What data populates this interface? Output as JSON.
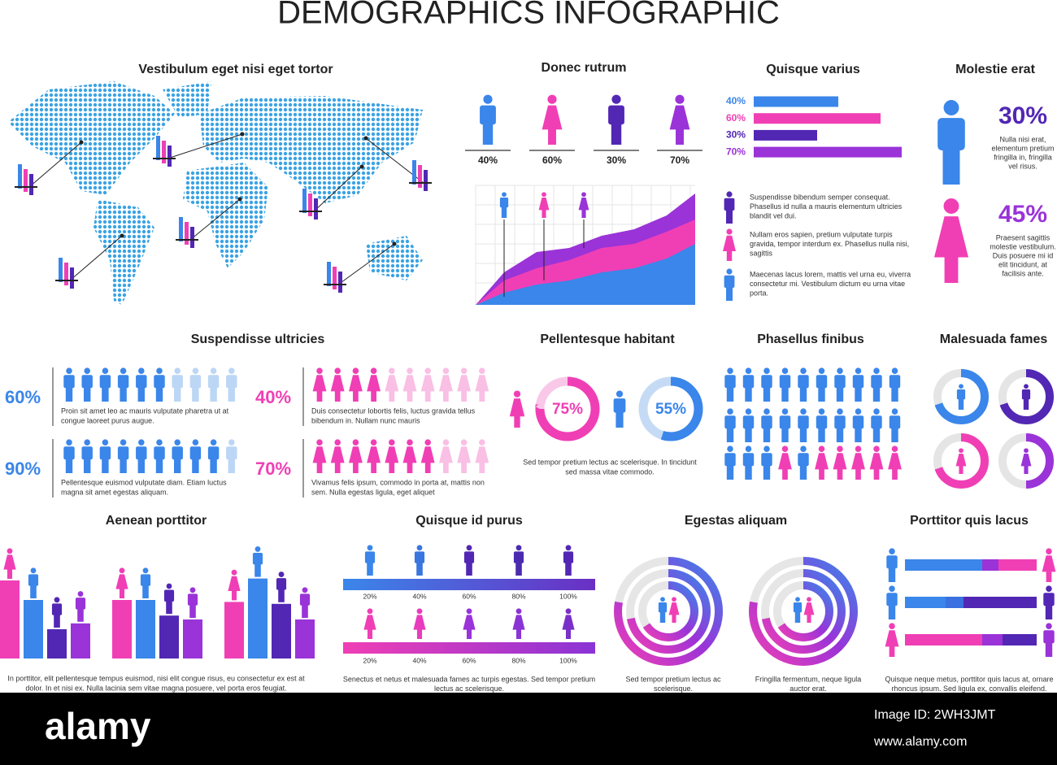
{
  "title": "DEMOGRAPHICS INFOGRAPHIC",
  "map": {
    "title": "Vestibulum eget nisi eget tortor"
  },
  "donec": {
    "title": "Donec rutrum",
    "labels": [
      "40%",
      "60%",
      "30%",
      "70%"
    ]
  },
  "quisque_varius": {
    "title": "Quisque varius",
    "bars": [
      {
        "value": 40,
        "label": "40%",
        "color": "#3a86ea"
      },
      {
        "value": 60,
        "label": "60%",
        "color": "#f03fb5"
      },
      {
        "value": 30,
        "label": "30%",
        "color": "#5227b4"
      },
      {
        "value": 70,
        "label": "70%",
        "color": "#9a33d8"
      }
    ],
    "legend": [
      [
        "Suspendisse bibendum semper consequat.",
        "Phasellus id nulla a mauris elementum ultricies",
        "blandit vel dui."
      ],
      [
        "Nullam eros sapien, pretium vulputate turpis",
        "gravida, tempor interdum ex. Phasellus nulla nisi,",
        "sagittis"
      ],
      [
        "Maecenas lacus lorem, mattis vel urna eu, viverra",
        "consectetur mi. Vestibulum dictum eu urna vitae",
        "porta."
      ]
    ]
  },
  "molestie": {
    "title": "Molestie erat",
    "items": [
      {
        "label": "30%",
        "lines": [
          "Nulla nisi erat,",
          "elementum pretium",
          "fringilla in, fringilla",
          "vel risus."
        ]
      },
      {
        "label": "45%",
        "lines": [
          "Praesent sagittis",
          "molestie vestibulum.",
          "Duis posuere mi id",
          "elit tincidunt, at",
          "facilisis ante."
        ]
      }
    ]
  },
  "suspendisse": {
    "title": "Suspendisse ultricies",
    "blocks": [
      {
        "value": 60,
        "label": "60%",
        "lines": [
          "Proin sit amet leo ac mauris vulputate pharetra ut at",
          "congue laoreet purus augue."
        ]
      },
      {
        "value": 40,
        "label": "40%",
        "lines": [
          "Duis consectetur lobortis felis, luctus gravida tellus",
          "bibendum in. Nullam nunc mauris"
        ]
      },
      {
        "value": 90,
        "label": "90%",
        "lines": [
          "Pellentesque euismod vulputate diam. Etiam luctus",
          "magna sit amet egestas aliquam."
        ]
      },
      {
        "value": 70,
        "label": "70%",
        "lines": [
          "Vivamus felis ipsum, commodo in porta at, mattis non",
          "sem. Nulla egestas ligula, eget aliquet"
        ]
      }
    ]
  },
  "pellentesque": {
    "title": "Pellentesque habitant",
    "donuts": [
      {
        "value": 75,
        "label": "75%"
      },
      {
        "value": 55,
        "label": "55%"
      }
    ],
    "lines": [
      "Sed tempor pretium lectus ac scelerisque. In tincidunt",
      "sed massa vitae commodo."
    ]
  },
  "phasellus": {
    "title": "Phasellus finibus"
  },
  "malesuada": {
    "title": "Malesuada fames"
  },
  "aenean": {
    "title": "Aenean porttitor",
    "groups": [
      [
        40,
        30,
        15,
        18
      ],
      [
        30,
        30,
        22,
        20
      ],
      [
        29,
        41,
        28,
        20
      ]
    ],
    "lines": [
      "In porttitor, elit pellentesque tempus euismod, nisi elit congue risus, eu consectetur ex est at",
      "dolor. In et nisi ex. Nulla lacinia sem vitae magna posuere, vel porta eros feugiat."
    ]
  },
  "quisque_id": {
    "title": "Quisque id purus",
    "steps": [
      "20%",
      "40%",
      "60%",
      "80%",
      "100%"
    ],
    "lines": [
      "Senectus et netus et malesuada fames ac turpis egestas. Sed tempor pretium",
      "lectus ac scelerisque."
    ]
  },
  "egestas": {
    "title": "Egestas aliquam",
    "captions": [
      [
        "Sed tempor pretium lectus ac",
        "scelerisque."
      ],
      [
        "Fringilla fermentum, neque ligula",
        "auctor erat."
      ]
    ]
  },
  "porttitor": {
    "title": "Porttitor quis lacus",
    "lines": [
      "Quisque neque metus, porttitor quis lacus at, ornare",
      "rhoncus ipsum. Sed ligula ex, convallis eleifend."
    ]
  },
  "watermark": {
    "brand": "alamy",
    "image_id": "Image ID: 2WH3JMT",
    "url": "www.alamy.com"
  }
}
